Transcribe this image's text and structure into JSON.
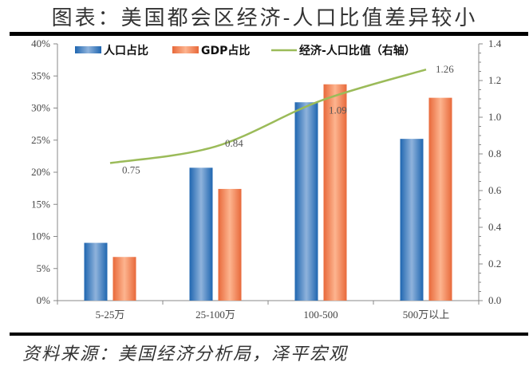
{
  "title": "图表：美国都会区经济-人口比值差异较小",
  "source": "资料来源：美国经济分析局，泽平宏观",
  "colors": {
    "population": "#2E75B6",
    "gdp": "#ED7D4F",
    "ratio": "#9BBB59"
  },
  "legend": [
    "人口占比",
    "GDP占比",
    "经济-人口比值（右轴）"
  ],
  "left_ticks": [
    "0%",
    "5%",
    "10%",
    "15%",
    "20%",
    "25%",
    "30%",
    "35%",
    "40%"
  ],
  "right_ticks": [
    "0.0",
    "0.2",
    "0.4",
    "0.6",
    "0.8",
    "1.0",
    "1.2",
    "1.4"
  ],
  "categories": [
    "5-25万",
    "25-100万",
    "100-500",
    "500万以上"
  ],
  "ratio_labels": [
    "0.75",
    "0.84",
    "1.09",
    "1.26"
  ],
  "chart_data": {
    "type": "bar",
    "title": "图表：美国都会区经济-人口比值差异较小",
    "categories": [
      "5-25万",
      "25-100万",
      "100-500",
      "500万以上"
    ],
    "series": [
      {
        "name": "人口占比",
        "type": "bar",
        "axis": "left",
        "values": [
          9.0,
          20.7,
          30.9,
          25.2
        ],
        "unit": "%"
      },
      {
        "name": "GDP占比",
        "type": "bar",
        "axis": "left",
        "values": [
          6.8,
          17.4,
          33.7,
          31.6
        ],
        "unit": "%"
      },
      {
        "name": "经济-人口比值（右轴）",
        "type": "line",
        "axis": "right",
        "values": [
          0.75,
          0.84,
          1.09,
          1.26
        ]
      }
    ],
    "xlabel": "",
    "ylabel": "",
    "ylim": [
      0,
      40
    ],
    "y2lim": [
      0,
      1.4
    ],
    "grid": false,
    "legend_position": "top",
    "annotations": [
      "0.75",
      "0.84",
      "1.09",
      "1.26"
    ]
  }
}
